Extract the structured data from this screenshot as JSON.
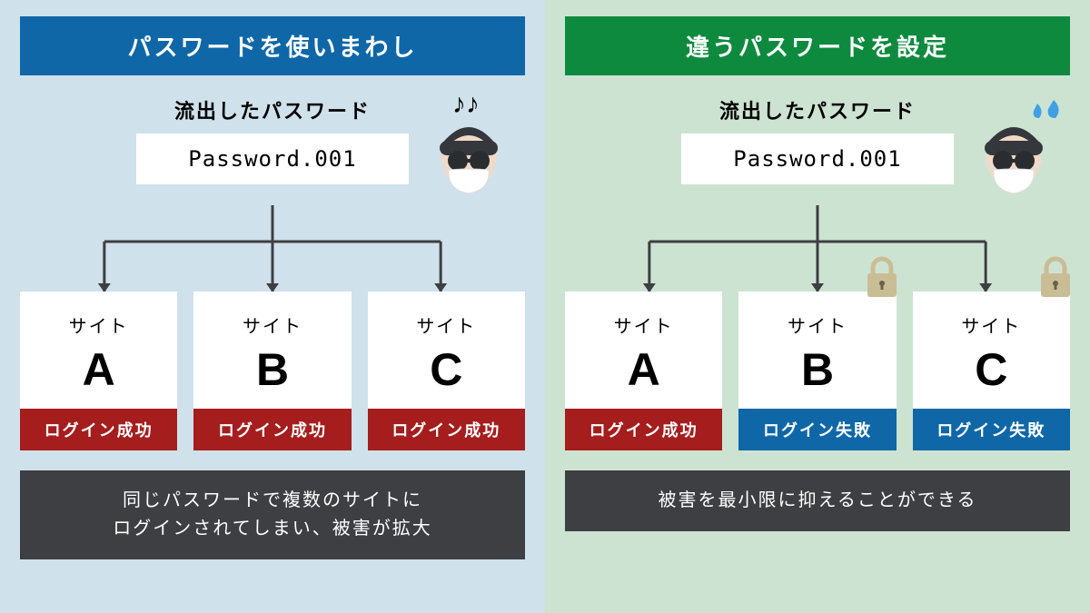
{
  "colors": {
    "left_bg": "#cfe1ea",
    "right_bg": "#cde3d2",
    "left_title": "#0f67a8",
    "right_title": "#0e8a3e",
    "success": "#a51d1d",
    "fail": "#0f67a8",
    "footer": "#3d3f42",
    "arrow": "#3d3f42",
    "lock": "#c9bd96",
    "face": "#f1d9c5",
    "beanie": "#34383c",
    "lens": "#2a2d30",
    "mask": "#fff",
    "sweat": "#3fa0e5"
  },
  "left": {
    "title": "パスワードを使いまわし",
    "subtitle": "流出したパスワード",
    "password": "Password.001",
    "notes": "♪♪",
    "sites": [
      {
        "label": "サイト",
        "letter": "A",
        "status": "ログイン成功",
        "status_key": "success",
        "locked": false
      },
      {
        "label": "サイト",
        "letter": "B",
        "status": "ログイン成功",
        "status_key": "success",
        "locked": false
      },
      {
        "label": "サイト",
        "letter": "C",
        "status": "ログイン成功",
        "status_key": "success",
        "locked": false
      }
    ],
    "footer": "同じパスワードで複数のサイトに\nログインされてしまい、被害が拡大"
  },
  "right": {
    "title": "違うパスワードを設定",
    "subtitle": "流出したパスワード",
    "password": "Password.001",
    "sites": [
      {
        "label": "サイト",
        "letter": "A",
        "status": "ログイン成功",
        "status_key": "success",
        "locked": false
      },
      {
        "label": "サイト",
        "letter": "B",
        "status": "ログイン失敗",
        "status_key": "fail",
        "locked": true
      },
      {
        "label": "サイト",
        "letter": "C",
        "status": "ログイン失敗",
        "status_key": "fail",
        "locked": true
      }
    ],
    "footer": "被害を最小限に抑えることができる"
  }
}
